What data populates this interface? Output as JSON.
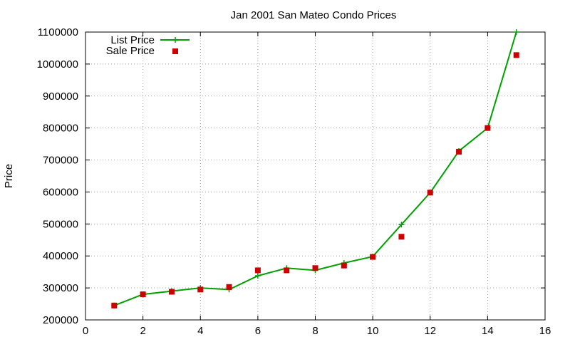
{
  "chart_data": {
    "type": "line",
    "title": "Jan 2001 San Mateo Condo Prices",
    "xlabel": "",
    "ylabel": "Price",
    "xlim": [
      0,
      16
    ],
    "ylim": [
      200000,
      1100000
    ],
    "x_ticks": [
      0,
      2,
      4,
      6,
      8,
      10,
      12,
      14,
      16
    ],
    "y_ticks": [
      200000,
      300000,
      400000,
      500000,
      600000,
      700000,
      800000,
      900000,
      1000000,
      1100000
    ],
    "grid": true,
    "legend_position": "top-left",
    "series": [
      {
        "name": "List Price",
        "style": "line-with-plus-markers",
        "color": "#00a000",
        "points": [
          [
            1,
            245000
          ],
          [
            2,
            280000
          ],
          [
            3,
            290000
          ],
          [
            4,
            300000
          ],
          [
            5,
            295000
          ],
          [
            6,
            338000
          ],
          [
            7,
            362000
          ],
          [
            8,
            355000
          ],
          [
            9,
            378000
          ],
          [
            10,
            398000
          ],
          [
            11,
            498000
          ],
          [
            12,
            598000
          ],
          [
            13,
            728000
          ],
          [
            14,
            800000
          ],
          [
            15,
            1100000
          ]
        ]
      },
      {
        "name": "Sale Price",
        "style": "square-markers",
        "color": "#cc0000",
        "points": [
          [
            1,
            245000
          ],
          [
            2,
            280000
          ],
          [
            3,
            288000
          ],
          [
            4,
            295000
          ],
          [
            5,
            303000
          ],
          [
            6,
            355000
          ],
          [
            7,
            355000
          ],
          [
            8,
            362000
          ],
          [
            9,
            370000
          ],
          [
            10,
            397000
          ],
          [
            11,
            460000
          ],
          [
            12,
            598000
          ],
          [
            13,
            726000
          ],
          [
            14,
            800000
          ],
          [
            15,
            1028000
          ]
        ]
      }
    ]
  }
}
